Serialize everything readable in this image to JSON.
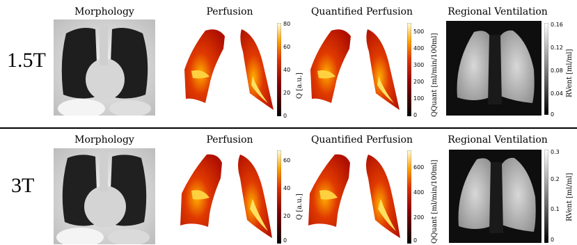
{
  "rows": [
    {
      "field": "1.5T",
      "titles": {
        "morphology": "Morphology",
        "perfusion": "Perfusion",
        "quantified": "Quantified Perfusion",
        "ventilation": "Regional Ventilation"
      },
      "perfusion_bar": {
        "label": "Q [a.u.]",
        "ticks": [
          "80",
          "60",
          "40",
          "20",
          "0"
        ]
      },
      "quant_bar": {
        "label": "QQuant [ml/min/100ml]",
        "ticks": [
          "500",
          "400",
          "300",
          "200",
          "100",
          "0"
        ]
      },
      "vent_bar": {
        "label": "RVent [ml/ml]",
        "ticks": [
          "0.16",
          "0.12",
          "0.08",
          "0.04",
          "0"
        ]
      }
    },
    {
      "field": "3T",
      "titles": {
        "morphology": "Morphology",
        "perfusion": "Perfusion",
        "quantified": "Quantified Perfusion",
        "ventilation": "Regional Ventilation"
      },
      "perfusion_bar": {
        "label": "Q [a.u.]",
        "ticks": [
          "60",
          "40",
          "20",
          "0"
        ]
      },
      "quant_bar": {
        "label": "QQuant [ml/min/100ml]",
        "ticks": [
          "600",
          "400",
          "200",
          "0"
        ]
      },
      "vent_bar": {
        "label": "RVent [ml/ml]",
        "ticks": [
          "0.3",
          "0.2",
          "0.1",
          "0"
        ]
      }
    }
  ],
  "colors": {
    "heat_dark": "#3a0000",
    "heat_mid": "#c41a00",
    "heat_hot": "#ff8a00",
    "heat_bright": "#ffffb0"
  }
}
